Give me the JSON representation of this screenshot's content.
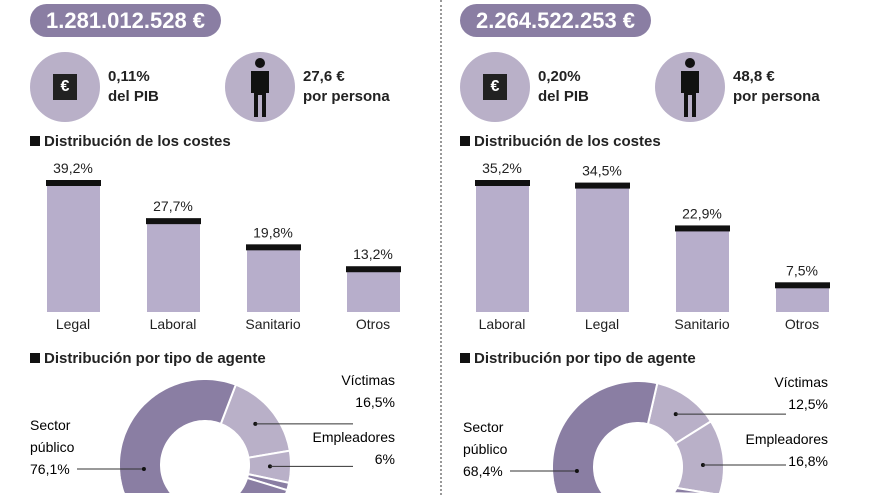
{
  "colors": {
    "dark": "#8a7ea3",
    "light": "#b9b0c8",
    "bar": "#b7aecb"
  },
  "panels": [
    {
      "total": "1.281.012.528 €",
      "pib_value": "0,11%",
      "pib_label": "del PIB",
      "person_value": "27,6 €",
      "person_label": "por persona",
      "costs_title": "Distribución de los costes",
      "agent_title": "Distribución por tipo de agente"
    },
    {
      "total": "2.264.522.253 €",
      "pib_value": "0,20%",
      "pib_label": "del PIB",
      "person_value": "48,8 €",
      "person_label": "por persona",
      "costs_title": "Distribución de los costes",
      "agent_title": "Distribución por tipo de agente"
    }
  ],
  "chart_data": [
    {
      "type": "bar",
      "title": "Distribución de los costes",
      "categories": [
        "Legal",
        "Laboral",
        "Sanitario",
        "Otros"
      ],
      "values": [
        39.2,
        27.7,
        19.8,
        13.2
      ],
      "labels": [
        "39,2%",
        "27,7%",
        "19,8%",
        "13,2%"
      ]
    },
    {
      "type": "bar",
      "title": "Distribución de los costes",
      "categories": [
        "Laboral",
        "Legal",
        "Sanitario",
        "Otros"
      ],
      "values": [
        35.2,
        34.5,
        22.9,
        7.5
      ],
      "labels": [
        "35,2%",
        "34,5%",
        "22,9%",
        "7,5%"
      ]
    },
    {
      "type": "pie",
      "title": "Distribución por tipo de agente",
      "slices": [
        {
          "name": "Sector público",
          "value": 76.1,
          "label": "76,1%"
        },
        {
          "name": "Víctimas",
          "value": 16.5,
          "label": "16,5%"
        },
        {
          "name": "Empleadores",
          "value": 6,
          "label": "6%"
        }
      ]
    },
    {
      "type": "pie",
      "title": "Distribución por tipo de agente",
      "slices": [
        {
          "name": "Sector público",
          "value": 68.4,
          "label": "68,4%"
        },
        {
          "name": "Víctimas",
          "value": 12.5,
          "label": "12,5%"
        },
        {
          "name": "Empleadores",
          "value": 16.8,
          "label": "16,8%"
        }
      ]
    }
  ]
}
